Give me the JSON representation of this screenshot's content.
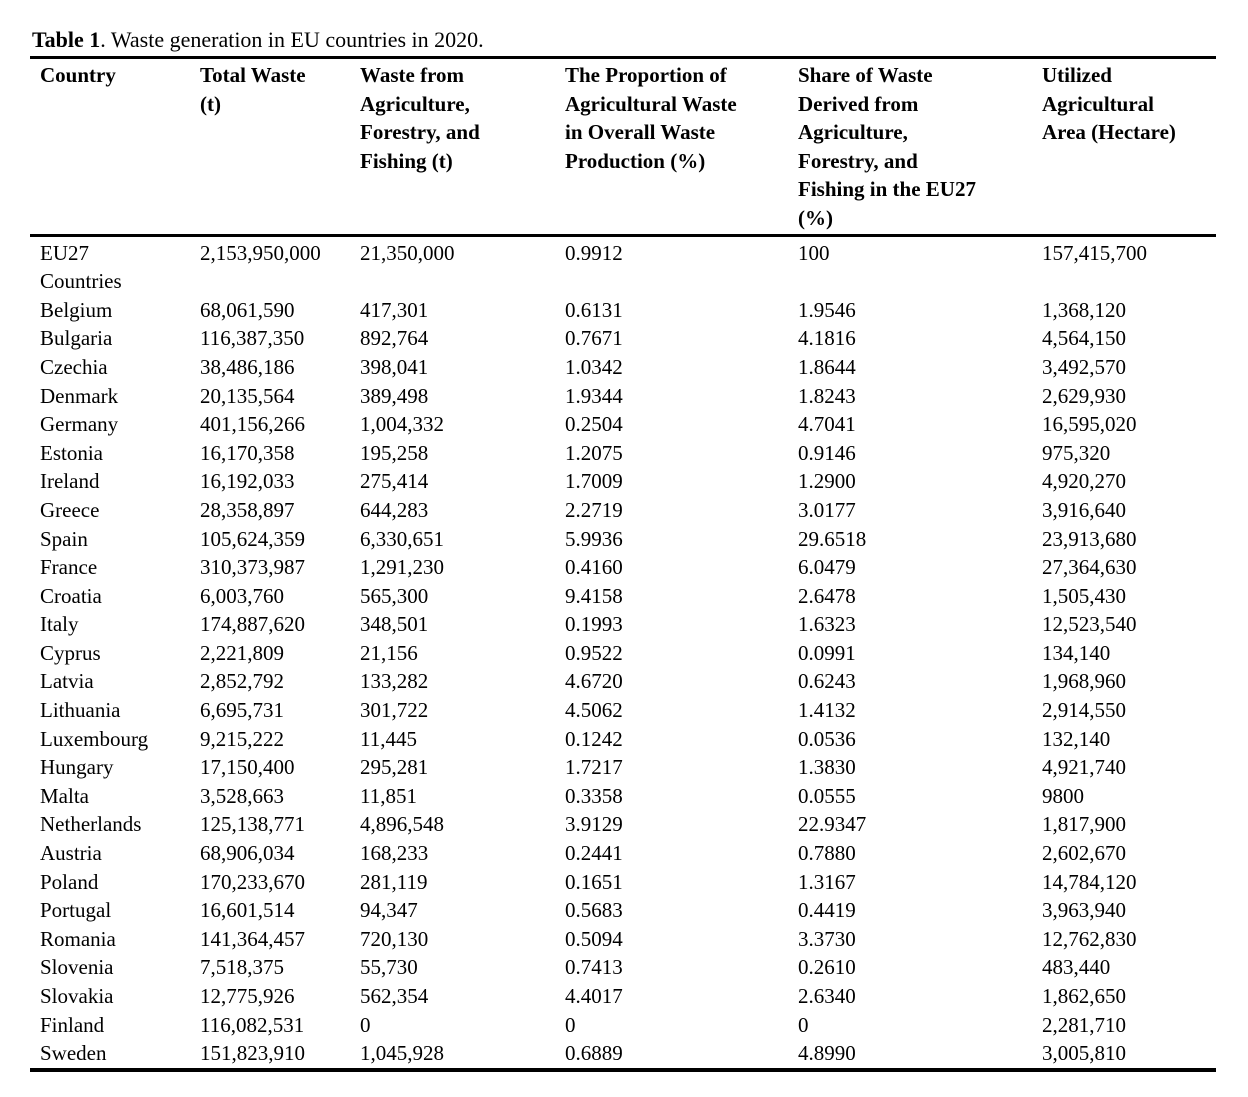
{
  "caption": {
    "label": "Table 1",
    "text": ". Waste generation in EU countries in 2020."
  },
  "table": {
    "columns": [
      "Country",
      "Total Waste\n(t)",
      "Waste from\nAgriculture,\nForestry, and\nFishing (t)",
      "The Proportion of\nAgricultural Waste\nin Overall Waste\nProduction (%)",
      "Share of Waste\nDerived from\nAgriculture,\nForestry, and\nFishing in the EU27\n(%)",
      "Utilized\nAgricultural\nArea (Hectare)"
    ],
    "rows": [
      [
        "EU27\nCountries",
        "2,153,950,000",
        "21,350,000",
        "0.9912",
        "100",
        "157,415,700"
      ],
      [
        "Belgium",
        "68,061,590",
        "417,301",
        "0.6131",
        "1.9546",
        "1,368,120"
      ],
      [
        "Bulgaria",
        "116,387,350",
        "892,764",
        "0.7671",
        "4.1816",
        "4,564,150"
      ],
      [
        "Czechia",
        "38,486,186",
        "398,041",
        "1.0342",
        "1.8644",
        "3,492,570"
      ],
      [
        "Denmark",
        "20,135,564",
        "389,498",
        "1.9344",
        "1.8243",
        "2,629,930"
      ],
      [
        "Germany",
        "401,156,266",
        "1,004,332",
        "0.2504",
        "4.7041",
        "16,595,020"
      ],
      [
        "Estonia",
        "16,170,358",
        "195,258",
        "1.2075",
        "0.9146",
        "975,320"
      ],
      [
        "Ireland",
        "16,192,033",
        "275,414",
        "1.7009",
        "1.2900",
        "4,920,270"
      ],
      [
        "Greece",
        "28,358,897",
        "644,283",
        "2.2719",
        "3.0177",
        "3,916,640"
      ],
      [
        "Spain",
        "105,624,359",
        "6,330,651",
        "5.9936",
        "29.6518",
        "23,913,680"
      ],
      [
        "France",
        "310,373,987",
        "1,291,230",
        "0.4160",
        "6.0479",
        "27,364,630"
      ],
      [
        "Croatia",
        "6,003,760",
        "565,300",
        "9.4158",
        "2.6478",
        "1,505,430"
      ],
      [
        "Italy",
        "174,887,620",
        "348,501",
        "0.1993",
        "1.6323",
        "12,523,540"
      ],
      [
        "Cyprus",
        "2,221,809",
        "21,156",
        "0.9522",
        "0.0991",
        "134,140"
      ],
      [
        "Latvia",
        "2,852,792",
        "133,282",
        "4.6720",
        "0.6243",
        "1,968,960"
      ],
      [
        "Lithuania",
        "6,695,731",
        "301,722",
        "4.5062",
        "1.4132",
        "2,914,550"
      ],
      [
        "Luxembourg",
        "9,215,222",
        "11,445",
        "0.1242",
        "0.0536",
        "132,140"
      ],
      [
        "Hungary",
        "17,150,400",
        "295,281",
        "1.7217",
        "1.3830",
        "4,921,740"
      ],
      [
        "Malta",
        "3,528,663",
        "11,851",
        "0.3358",
        "0.0555",
        "9800"
      ],
      [
        "Netherlands",
        "125,138,771",
        "4,896,548",
        "3.9129",
        "22.9347",
        "1,817,900"
      ],
      [
        "Austria",
        "68,906,034",
        "168,233",
        "0.2441",
        "0.7880",
        "2,602,670"
      ],
      [
        "Poland",
        "170,233,670",
        "281,119",
        "0.1651",
        "1.3167",
        "14,784,120"
      ],
      [
        "Portugal",
        "16,601,514",
        "94,347",
        "0.5683",
        "0.4419",
        "3,963,940"
      ],
      [
        "Romania",
        "141,364,457",
        "720,130",
        "0.5094",
        "3.3730",
        "12,762,830"
      ],
      [
        "Slovenia",
        "7,518,375",
        "55,730",
        "0.7413",
        "0.2610",
        "483,440"
      ],
      [
        "Slovakia",
        "12,775,926",
        "562,354",
        "4.4017",
        "2.6340",
        "1,862,650"
      ],
      [
        "Finland",
        "116,082,531",
        "0",
        "0",
        "0",
        "2,281,710"
      ],
      [
        "Sweden",
        "151,823,910",
        "1,045,928",
        "0.6889",
        "4.8990",
        "3,005,810"
      ]
    ]
  }
}
